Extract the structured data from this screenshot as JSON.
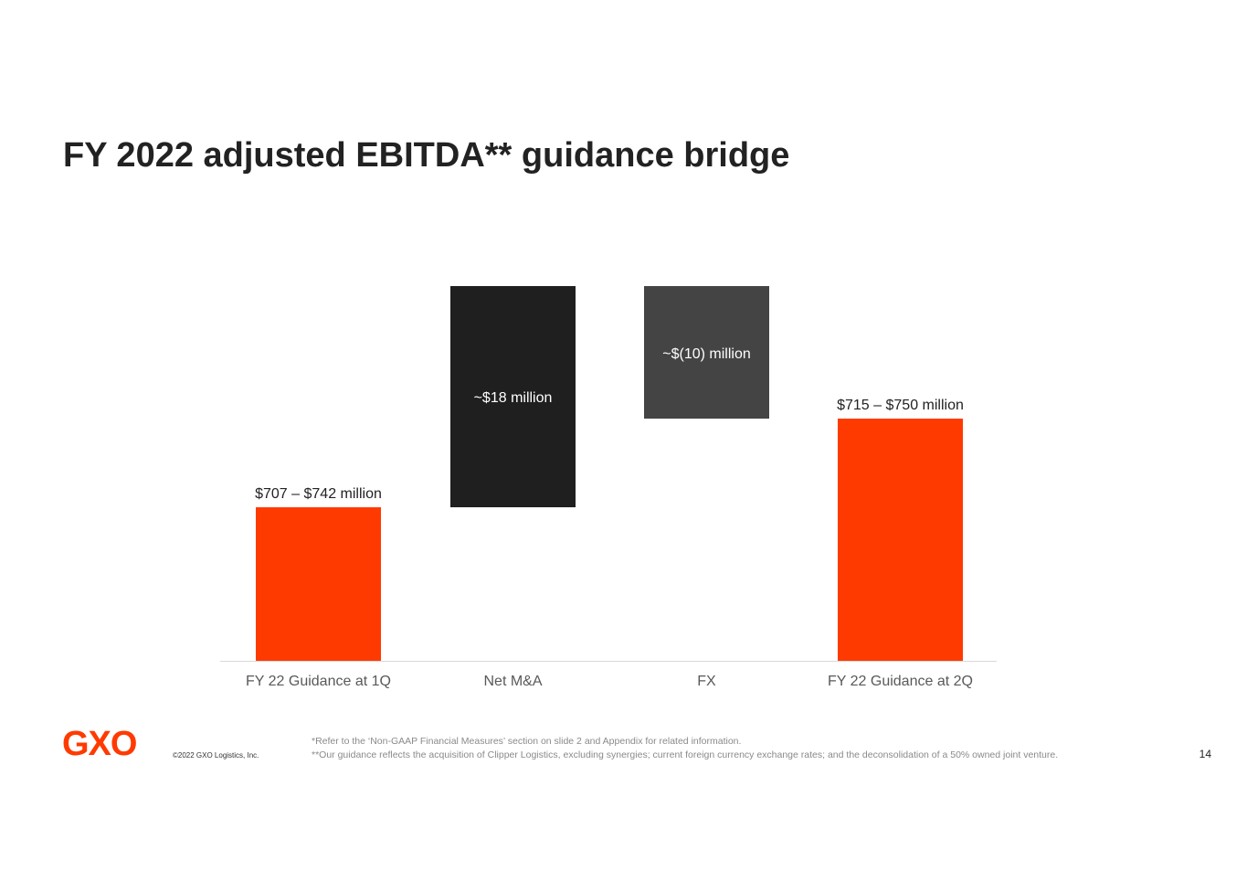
{
  "slide": {
    "title": "FY 2022 adjusted EBITDA** guidance bridge",
    "page_number": "14"
  },
  "chart_data": {
    "type": "bar",
    "subtype": "waterfall",
    "title": "FY 2022 adjusted EBITDA** guidance bridge",
    "units": "$ million",
    "categories": [
      "FY 22 Guidance at 1Q",
      "Net M&A",
      "FX",
      "FY 22 Guidance at 2Q"
    ],
    "bars": [
      {
        "category": "FY 22 Guidance at 1Q",
        "kind": "total",
        "start": 0,
        "end": 707,
        "range_low": 707,
        "range_high": 742,
        "label": "$707 – $742 million",
        "color": "#ff3a00",
        "label_position": "above"
      },
      {
        "category": "Net M&A",
        "kind": "increase",
        "start": 707,
        "end": 725,
        "delta": 18,
        "label": "~$18 million",
        "color": "#1f1f1f",
        "label_position": "inside"
      },
      {
        "category": "FX",
        "kind": "decrease",
        "start": 725,
        "end": 715,
        "delta": -10,
        "label": "~$(10) million",
        "color": "#444444",
        "label_position": "inside"
      },
      {
        "category": "FY 22 Guidance at 2Q",
        "kind": "total",
        "start": 0,
        "end": 715,
        "range_low": 715,
        "range_high": 750,
        "label": "$715 – $750 million",
        "color": "#ff3a00",
        "label_position": "above"
      }
    ],
    "legend": "none",
    "grid": false,
    "axis_label_color": "#595959"
  },
  "footer": {
    "logo_text": "GXO",
    "logo_color": "#ff3a00",
    "copyright": "©2022 GXO Logistics, Inc.",
    "footnotes": [
      "*Refer to the ‘Non-GAAP Financial Measures’ section on slide 2 and Appendix for related information.",
      "**Our guidance reflects the acquisition of Clipper Logistics, excluding synergies; current foreign currency exchange rates; and the deconsolidation of a 50% owned joint venture."
    ]
  }
}
